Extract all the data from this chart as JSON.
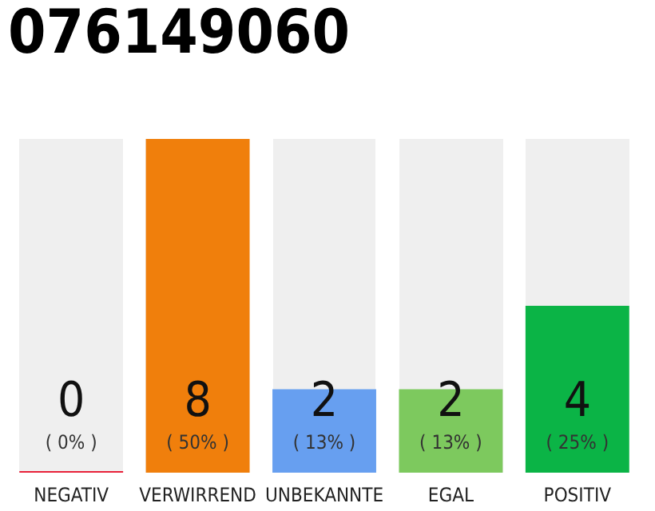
{
  "chart_data": {
    "type": "bar",
    "title": "076149060",
    "categories": [
      "NEGATIV",
      "VERWIRREND",
      "UNBEKANNTE",
      "EGAL",
      "POSITIV"
    ],
    "values": [
      0,
      8,
      2,
      2,
      4
    ],
    "colors": [
      "#e8213a",
      "#f07f0c",
      "#679ff0",
      "#7dc95e",
      "#0bb446"
    ],
    "value_labels": [
      "0\n( 0% )",
      "8\n( 50% )",
      "2\n( 13% )",
      "2\n( 13% )",
      "4\n( 25% )"
    ],
    "tick_labels": "x"
  }
}
